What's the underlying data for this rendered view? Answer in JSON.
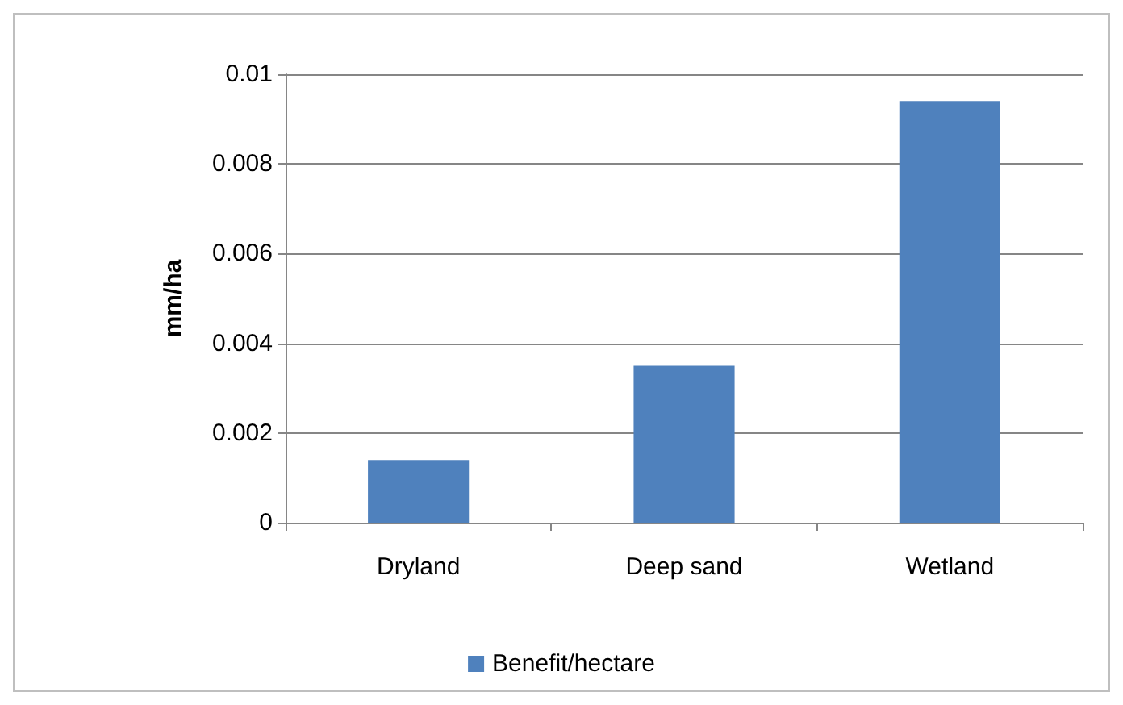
{
  "chart_data": {
    "type": "bar",
    "ylabel": "mm/ha",
    "categories": [
      "Dryland",
      "Deep sand",
      "Wetland"
    ],
    "series": [
      {
        "name": "Benefit/hectare",
        "color": "#4f81bd",
        "values": [
          0.0014,
          0.0035,
          0.0094
        ]
      }
    ],
    "ylim": [
      0,
      0.01
    ],
    "yticks": [
      0,
      0.002,
      0.004,
      0.006,
      0.008,
      0.01
    ],
    "grid": "y",
    "legend": "bottom"
  }
}
